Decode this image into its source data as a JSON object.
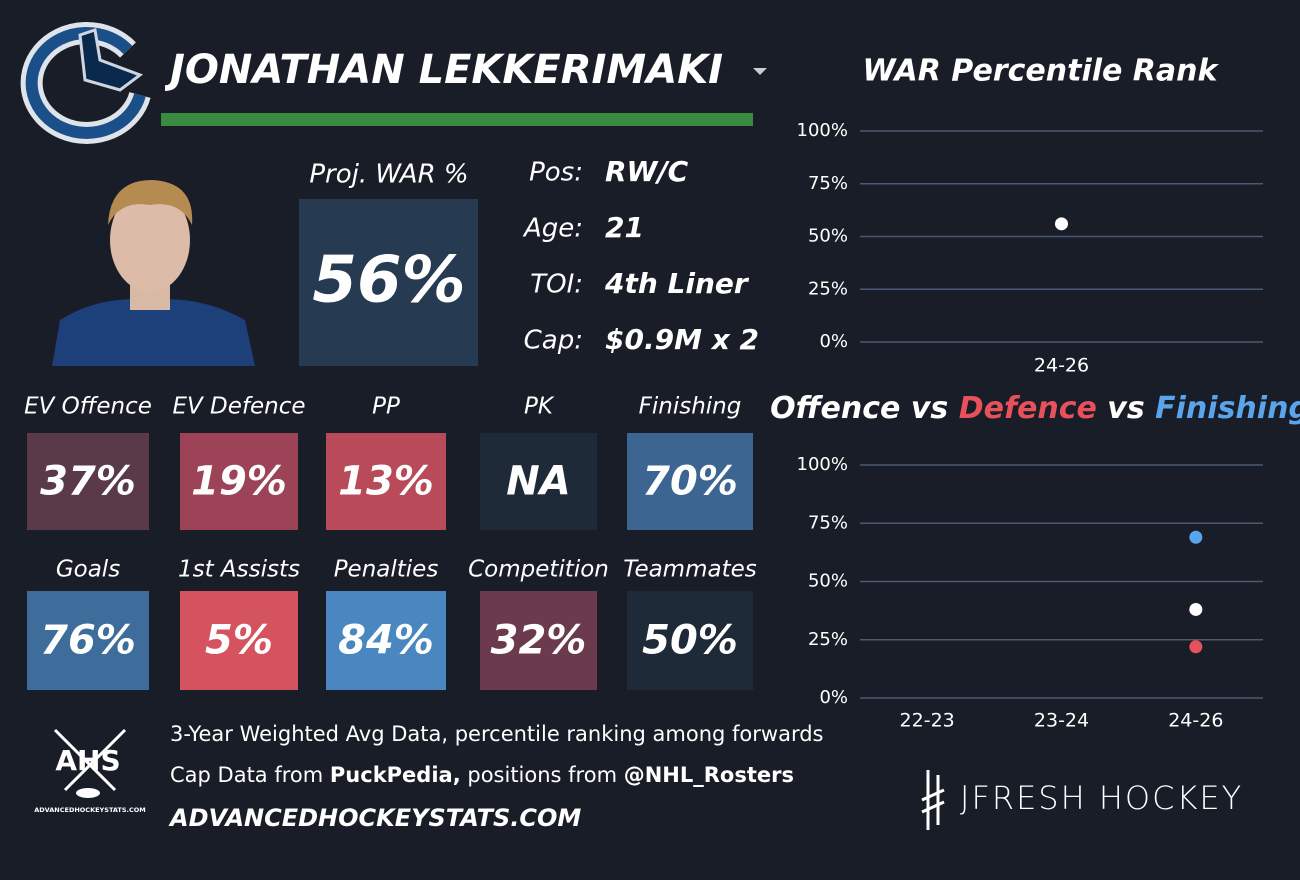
{
  "player": {
    "name": "JONATHAN LEKKERIMAKI"
  },
  "proj_war": {
    "label": "Proj. WAR %",
    "value": "56%"
  },
  "info": [
    {
      "label": "Pos:",
      "value": "RW/C"
    },
    {
      "label": "Age:",
      "value": "21"
    },
    {
      "label": "TOI:",
      "value": "4th Liner"
    },
    {
      "label": "Cap:",
      "value": "$0.9M x 2"
    }
  ],
  "tiles": [
    {
      "label": "EV Offence",
      "value": "37%",
      "color": "#5a3a48"
    },
    {
      "label": "EV Defence",
      "value": "19%",
      "color": "#9c4358"
    },
    {
      "label": "PP",
      "value": "13%",
      "color": "#b94a5a"
    },
    {
      "label": "PK",
      "value": "NA",
      "color": "#1f2a38"
    },
    {
      "label": "Finishing",
      "value": "70%",
      "color": "#3d6591"
    },
    {
      "label": "Goals",
      "value": "76%",
      "color": "#3e6c9b"
    },
    {
      "label": "1st Assists",
      "value": "5%",
      "color": "#d5535f"
    },
    {
      "label": "Penalties",
      "value": "84%",
      "color": "#4a87c0"
    },
    {
      "label": "Competition",
      "value": "32%",
      "color": "#6b3a4c"
    },
    {
      "label": "Teammates",
      "value": "50%",
      "color": "#1f2a38"
    }
  ],
  "footer": {
    "logo": "AHS",
    "logo_caption": "ADVANCEDHOCKEYSTATS.COM",
    "line1": "3-Year Weighted Avg Data, percentile ranking among forwards",
    "line2": [
      "Cap Data from ",
      "PuckPedia,",
      " positions from ",
      "@NHL_Rosters"
    ],
    "site": "ADVANCEDHOCKEYSTATS.COM",
    "brand": "JFRESH HOCKEY"
  },
  "chart_data": [
    {
      "type": "scatter",
      "title": "WAR Percentile Rank",
      "categories": [
        "24-26"
      ],
      "values": [
        56
      ],
      "color": "#ffffff",
      "ylim": [
        0,
        100
      ],
      "yticks": [
        {
          "value": 0,
          "label": "0%"
        },
        {
          "value": 25,
          "label": "25%"
        },
        {
          "value": 50,
          "label": "50%"
        },
        {
          "value": 75,
          "label": "75%"
        },
        {
          "value": 100,
          "label": "100%"
        }
      ],
      "grid": true
    },
    {
      "type": "scatter",
      "title_joiner": "vs",
      "categories": [
        "22-23",
        "23-24",
        "24-26"
      ],
      "series": [
        {
          "name": "Offence",
          "color": "#ffffff",
          "values": [
            null,
            null,
            38
          ]
        },
        {
          "name": "Defence",
          "color": "#e8505b",
          "values": [
            null,
            null,
            22
          ]
        },
        {
          "name": "Finishing",
          "color": "#5aa4ec",
          "values": [
            null,
            null,
            69
          ]
        }
      ],
      "ylim": [
        0,
        100
      ],
      "yticks": [
        {
          "value": 0,
          "label": "0%"
        },
        {
          "value": 25,
          "label": "25%"
        },
        {
          "value": 50,
          "label": "50%"
        },
        {
          "value": 75,
          "label": "75%"
        },
        {
          "value": 100,
          "label": "100%"
        }
      ],
      "grid": true
    }
  ]
}
